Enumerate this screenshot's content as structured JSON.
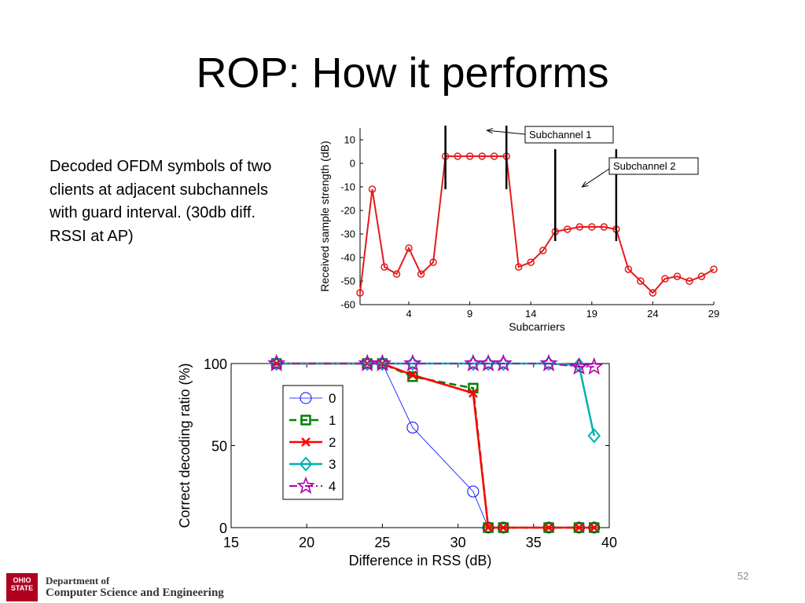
{
  "slide": {
    "title": "ROP: How it performs",
    "caption": "Decoded OFDM symbols of two clients at adjacent subchannels with guard interval.  (30db diff. RSSI at AP)",
    "page_number": "52"
  },
  "footer": {
    "seal_text": "OHIO STATE",
    "dept_line1": "Department of",
    "dept_line2": "Computer Science and Engineering"
  },
  "chart_data": [
    {
      "type": "line",
      "title": "",
      "xlabel": "Subcarriers",
      "ylabel": "Received sample strength (dB)",
      "xlim": [
        0,
        29
      ],
      "ylim": [
        -60,
        15
      ],
      "xticks": [
        4,
        9,
        14,
        19,
        24,
        29
      ],
      "yticks": [
        10,
        0,
        -10,
        -20,
        -30,
        -40,
        -50,
        -60
      ],
      "grid": false,
      "color": "#e41a1c",
      "x": [
        0,
        1,
        2,
        3,
        4,
        5,
        6,
        7,
        8,
        9,
        10,
        11,
        12,
        13,
        14,
        15,
        16,
        17,
        18,
        19,
        20,
        21,
        22,
        23,
        24,
        25,
        26,
        27,
        28,
        29
      ],
      "values": [
        -55,
        -11,
        -44,
        -47,
        -36,
        -47,
        -42,
        3,
        3,
        3,
        3,
        3,
        3,
        -44,
        -42,
        -37,
        -29,
        -28,
        -27,
        -27,
        -27,
        -28,
        -45,
        -50,
        -55,
        -49,
        -48,
        -50,
        -48,
        -45
      ],
      "vertical_markers": [
        {
          "x": 7,
          "y": [
            -11,
            16
          ]
        },
        {
          "x": 12,
          "y": [
            -11,
            16
          ]
        },
        {
          "x": 16,
          "y": [
            -33,
            6
          ]
        },
        {
          "x": 21,
          "y": [
            -33,
            6
          ]
        }
      ],
      "annotations": [
        {
          "text": "Subchannel 1",
          "arrow_to": [
            10.4,
            14
          ]
        },
        {
          "text": "Subchannel 2",
          "arrow_to": [
            18.2,
            -10
          ]
        }
      ]
    },
    {
      "type": "line",
      "title": "",
      "xlabel": "Difference in RSS (dB)",
      "ylabel": "Correct decoding ratio (%)",
      "xlim": [
        15,
        40
      ],
      "ylim": [
        0,
        100
      ],
      "xticks": [
        15,
        20,
        25,
        30,
        35,
        40
      ],
      "yticks": [
        0,
        50,
        100
      ],
      "grid": false,
      "legend_position": "center-left",
      "series": [
        {
          "name": "0",
          "color": "#0000ff",
          "marker": "circle",
          "dash": "solid",
          "width": 0.8,
          "x": [
            18,
            24,
            25,
            27,
            31,
            32,
            33,
            36,
            38,
            39
          ],
          "values": [
            100,
            100,
            100,
            61,
            22,
            0,
            0,
            0,
            0,
            0
          ]
        },
        {
          "name": "1",
          "color": "#008000",
          "marker": "square",
          "dash": "dashed",
          "width": 2.5,
          "x": [
            18,
            24,
            25,
            27,
            31,
            32,
            33,
            36,
            38,
            39
          ],
          "values": [
            100,
            100,
            100,
            92,
            85,
            0,
            0,
            0,
            0,
            0
          ]
        },
        {
          "name": "2",
          "color": "#ff0000",
          "marker": "x",
          "dash": "solid",
          "width": 2.5,
          "x": [
            18,
            24,
            25,
            27,
            31,
            32,
            33,
            36,
            38,
            39
          ],
          "values": [
            100,
            100,
            100,
            93,
            82,
            0,
            0,
            0,
            0,
            0
          ]
        },
        {
          "name": "3",
          "color": "#00b0b0",
          "marker": "diamond",
          "dash": "solid",
          "width": 2.5,
          "x": [
            18,
            24,
            25,
            27,
            31,
            32,
            33,
            36,
            38,
            39
          ],
          "values": [
            100,
            100,
            100,
            100,
            100,
            100,
            100,
            100,
            99,
            56
          ]
        },
        {
          "name": "4",
          "color": "#b000b0",
          "marker": "star",
          "dash": "dashdot",
          "width": 2,
          "x": [
            18,
            24,
            25,
            27,
            31,
            32,
            33,
            36,
            38,
            39
          ],
          "values": [
            100,
            100,
            100,
            100,
            100,
            100,
            100,
            100,
            98,
            98
          ]
        }
      ]
    }
  ]
}
